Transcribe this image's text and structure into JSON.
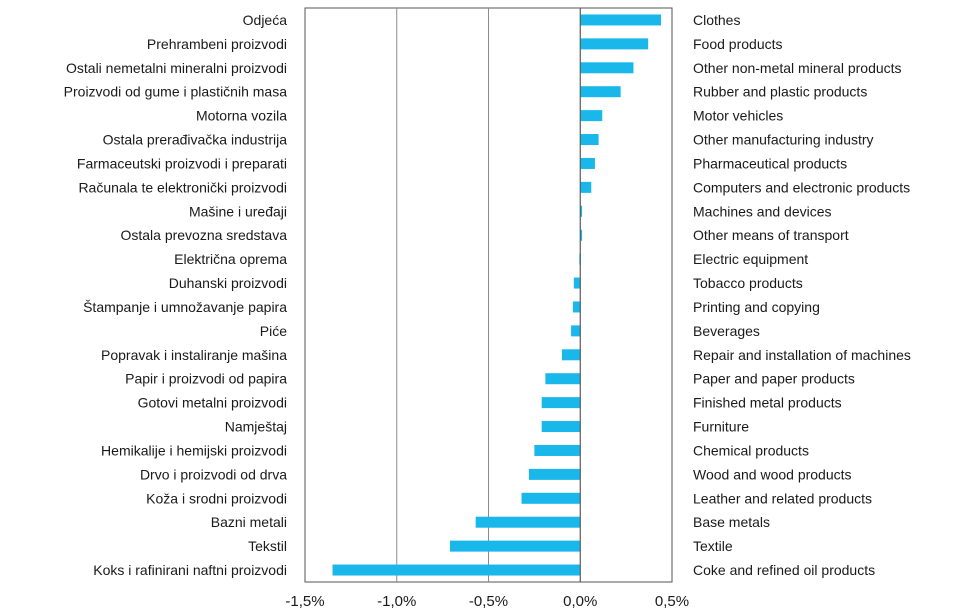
{
  "chart_data": {
    "type": "bar",
    "orientation": "horizontal",
    "categories_bs": [
      "Odjeća",
      "Prehrambeni proizvodi",
      "Ostali nemetalni mineralni proizvodi",
      "Proizvodi od gume i plastičnih masa",
      "Motorna vozila",
      "Ostala prerađivačka industrija",
      "Farmaceutski proizvodi i preparati",
      "Računala te elektronički proizvodi",
      "Mašine i uređaji",
      "Ostala prevozna sredstava",
      "Električna oprema",
      "Duhanski proizvodi",
      "Štampanje i umnožavanje papira",
      "Piće",
      "Popravak i instaliranje mašina",
      "Papir i proizvodi od papira",
      "Gotovi metalni proizvodi",
      "Namještaj",
      "Hemikalije i hemijski proizvodi",
      "Drvo i proizvodi od drva",
      "Koža i srodni proizvodi",
      "Bazni metali",
      "Tekstil",
      "Koks i rafinirani naftni proizvodi"
    ],
    "categories_en": [
      "Clothes",
      "Food products",
      "Other non-metal mineral products",
      "Rubber and plastic products",
      "Motor vehicles",
      "Other manufacturing industry",
      "Pharmaceutical products",
      "Computers and electronic products",
      "Machines and devices",
      "Other means of transport",
      "Electric equipment",
      "Tobacco products",
      "Printing and copying",
      "Beverages",
      "Repair and installation of machines",
      "Paper and paper products",
      "Finished metal products",
      "Furniture",
      "Chemical products",
      "Wood and wood products",
      "Leather and related products",
      "Base metals",
      "Textile",
      "Coke and refined oil products"
    ],
    "values": [
      0.44,
      0.37,
      0.29,
      0.22,
      0.12,
      0.1,
      0.08,
      0.06,
      0.01,
      0.01,
      -0.005,
      -0.035,
      -0.04,
      -0.05,
      -0.1,
      -0.19,
      -0.21,
      -0.21,
      -0.25,
      -0.28,
      -0.32,
      -0.57,
      -0.71,
      -1.35
    ],
    "x_ticks": [
      "-1,5%",
      "-1,0%",
      "-0,5%",
      "0,0%",
      "0,5%"
    ],
    "x_tick_values": [
      -1.5,
      -1.0,
      -0.5,
      0.0,
      0.5
    ],
    "xlim": [
      -1.5,
      0.5
    ],
    "grid": true,
    "bar_color": "#1ab7ea",
    "title": "",
    "xlabel": "",
    "ylabel": ""
  }
}
